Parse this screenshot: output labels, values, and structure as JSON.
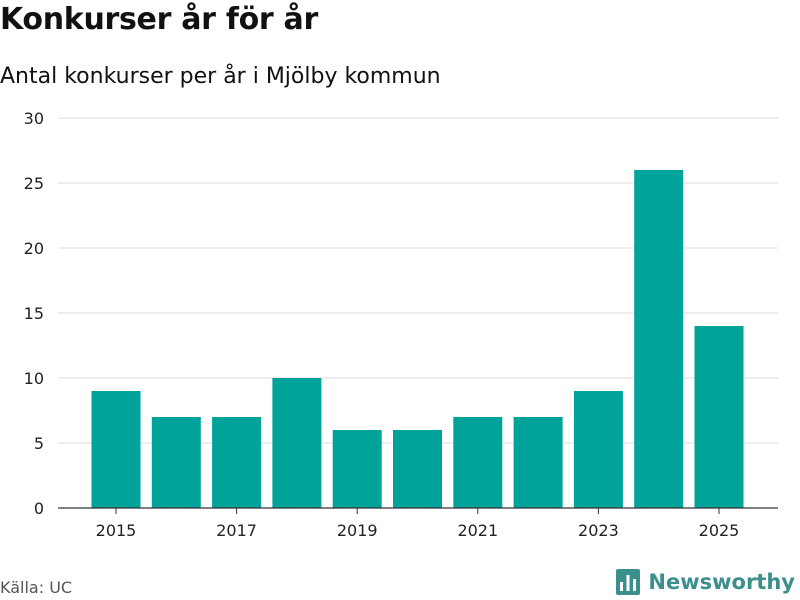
{
  "header": {
    "title": "Konkurser år för år",
    "subtitle": "Antal konkurser per år i Mjölby kommun"
  },
  "footer": {
    "source": "Källa: UC",
    "brand": "Newsworthy",
    "brand_icon": "bar-chart-logo-icon",
    "brand_color": "#3b8f8c"
  },
  "chart_data": {
    "type": "bar",
    "title": "Konkurser år för år",
    "subtitle": "Antal konkurser per år i Mjölby kommun",
    "categories": [
      2015,
      2016,
      2017,
      2018,
      2019,
      2020,
      2021,
      2022,
      2023,
      2024,
      2025
    ],
    "values": [
      9,
      7,
      7,
      10,
      6,
      6,
      7,
      7,
      9,
      26,
      14
    ],
    "x_tick_labels": [
      "2015",
      "2017",
      "2019",
      "2021",
      "2023",
      "2025"
    ],
    "y_ticks": [
      0,
      5,
      10,
      15,
      20,
      25,
      30
    ],
    "ylim": [
      0,
      30
    ],
    "xlabel": "",
    "ylabel": "",
    "bar_color": "#00a39a",
    "grid": true,
    "legend": false
  }
}
